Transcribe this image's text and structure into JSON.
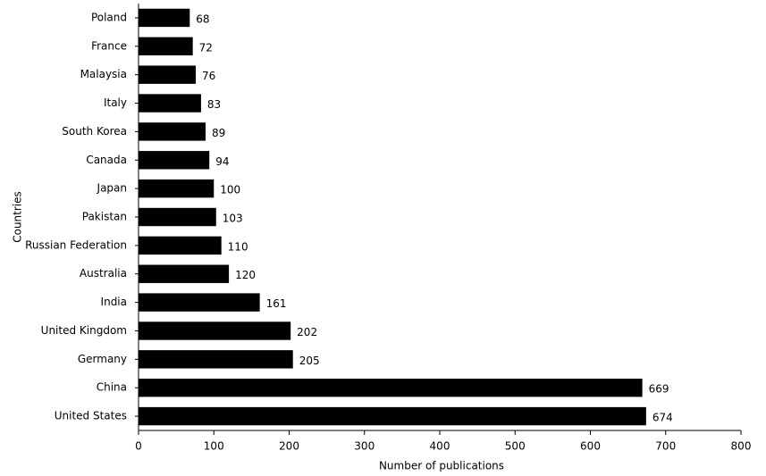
{
  "chart_data": {
    "type": "bar",
    "orientation": "horizontal",
    "xlabel": "Number of publications",
    "ylabel": "Countries",
    "categories": [
      "Poland",
      "France",
      "Malaysia",
      "Italy",
      "South Korea",
      "Canada",
      "Japan",
      "Pakistan",
      "Russian Federation",
      "Australia",
      "India",
      "United Kingdom",
      "Germany",
      "China",
      "United States"
    ],
    "values": [
      68,
      72,
      76,
      83,
      89,
      94,
      100,
      103,
      110,
      120,
      161,
      202,
      205,
      669,
      674
    ],
    "color": "#000000",
    "xlim": [
      0,
      800
    ],
    "xticks": [
      0,
      100,
      200,
      300,
      400,
      500,
      600,
      700,
      800
    ],
    "grid": false
  }
}
